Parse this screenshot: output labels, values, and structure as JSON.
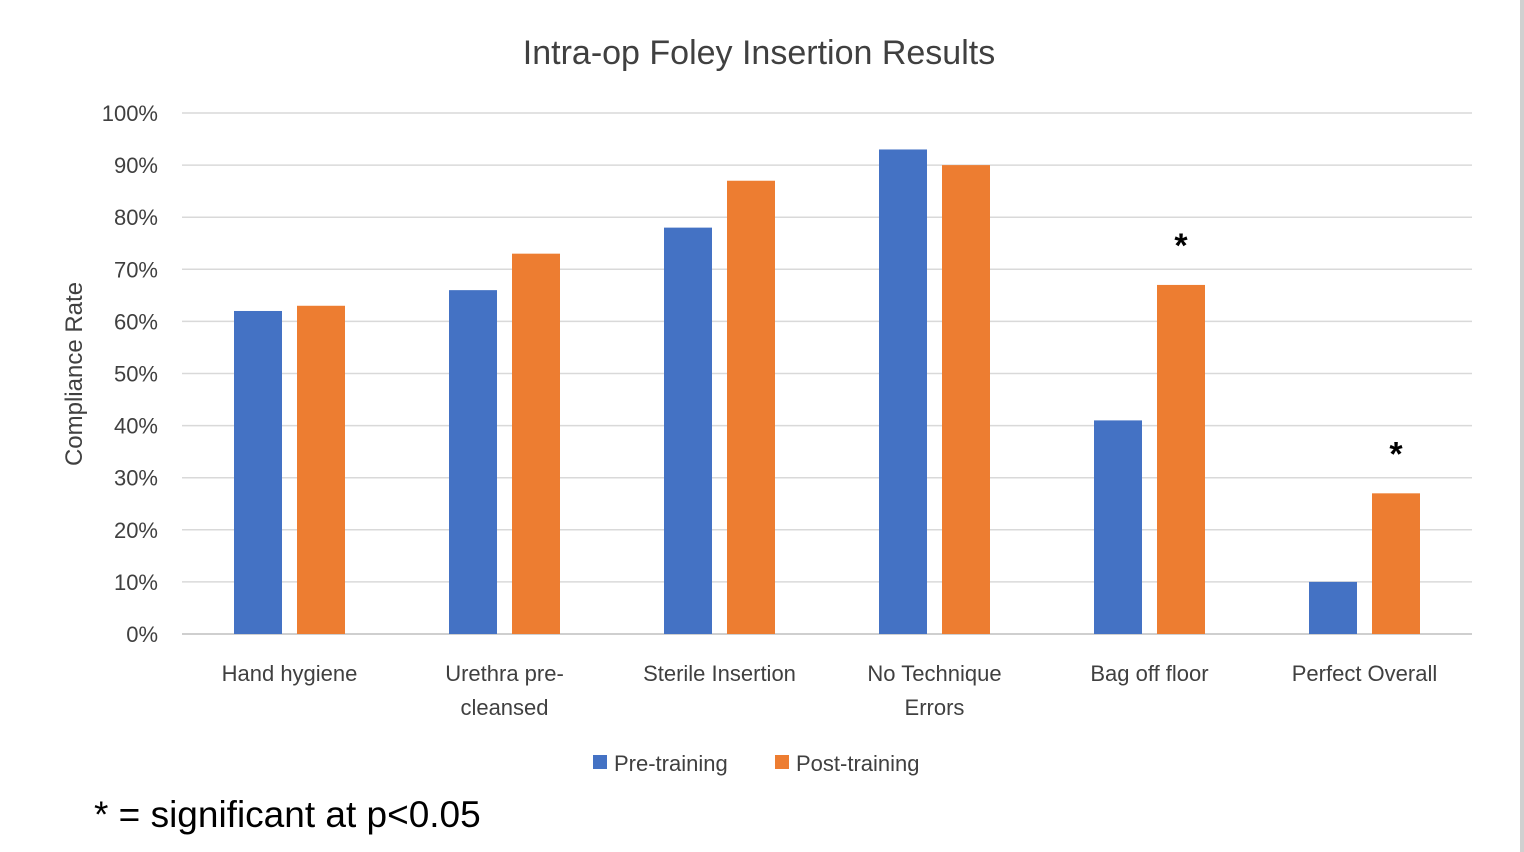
{
  "chart_data": {
    "type": "bar",
    "title": "Intra-op Foley Insertion Results",
    "ylabel": "Compliance Rate",
    "xlabel": "",
    "ylim": [
      0,
      100
    ],
    "yticks": [
      "0%",
      "10%",
      "20%",
      "30%",
      "40%",
      "50%",
      "60%",
      "70%",
      "80%",
      "90%",
      "100%"
    ],
    "categories": [
      [
        "Hand hygiene"
      ],
      [
        "Urethra pre-",
        "cleansed"
      ],
      [
        "Sterile Insertion"
      ],
      [
        "No Technique",
        "Errors"
      ],
      [
        "Bag off floor"
      ],
      [
        "Perfect Overall"
      ]
    ],
    "series": [
      {
        "name": "Pre-training",
        "color": "#4472c4",
        "values": [
          62,
          66,
          78,
          93,
          41,
          10
        ]
      },
      {
        "name": "Post-training",
        "color": "#ed7d31",
        "values": [
          63,
          73,
          87,
          90,
          67,
          27
        ]
      }
    ],
    "significant_markers": [
      {
        "category_index": 4,
        "series_index": 1,
        "symbol": "*"
      },
      {
        "category_index": 5,
        "series_index": 1,
        "symbol": "*"
      }
    ],
    "grid": true,
    "legend_position": "bottom"
  },
  "footnote": "* = significant at p<0.05"
}
